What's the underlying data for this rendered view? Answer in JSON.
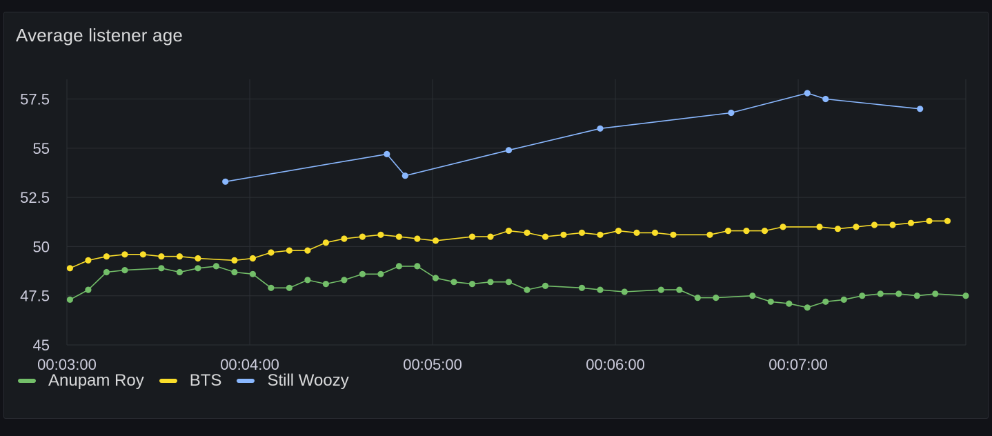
{
  "panel": {
    "title": "Average listener age"
  },
  "chart_data": {
    "type": "line",
    "title": "Average listener age",
    "xlabel": "",
    "ylabel": "",
    "xlim": [
      "00:03:00",
      "00:07:55"
    ],
    "ylim": [
      45,
      58.5
    ],
    "x_ticks": [
      "00:03:00",
      "00:04:00",
      "00:05:00",
      "00:06:00",
      "00:07:00"
    ],
    "y_ticks": [
      "45",
      "47.5",
      "50",
      "52.5",
      "55",
      "57.5"
    ],
    "grid": true,
    "legend": "bottom-left",
    "series": [
      {
        "name": "Anupam Roy",
        "color": "#73bf69",
        "points": [
          [
            "00:03:01",
            47.3
          ],
          [
            "00:03:07",
            47.8
          ],
          [
            "00:03:13",
            48.7
          ],
          [
            "00:03:19",
            48.8
          ],
          [
            "00:03:31",
            48.9
          ],
          [
            "00:03:37",
            48.7
          ],
          [
            "00:03:43",
            48.9
          ],
          [
            "00:03:49",
            49.0
          ],
          [
            "00:03:55",
            48.7
          ],
          [
            "00:04:01",
            48.6
          ],
          [
            "00:04:07",
            47.9
          ],
          [
            "00:04:13",
            47.9
          ],
          [
            "00:04:19",
            48.3
          ],
          [
            "00:04:25",
            48.1
          ],
          [
            "00:04:31",
            48.3
          ],
          [
            "00:04:37",
            48.6
          ],
          [
            "00:04:43",
            48.6
          ],
          [
            "00:04:49",
            49.0
          ],
          [
            "00:04:55",
            49.0
          ],
          [
            "00:05:01",
            48.4
          ],
          [
            "00:05:07",
            48.2
          ],
          [
            "00:05:13",
            48.1
          ],
          [
            "00:05:19",
            48.2
          ],
          [
            "00:05:25",
            48.2
          ],
          [
            "00:05:31",
            47.8
          ],
          [
            "00:05:37",
            48.0
          ],
          [
            "00:05:49",
            47.9
          ],
          [
            "00:05:55",
            47.8
          ],
          [
            "00:06:03",
            47.7
          ],
          [
            "00:06:15",
            47.8
          ],
          [
            "00:06:21",
            47.8
          ],
          [
            "00:06:27",
            47.4
          ],
          [
            "00:06:33",
            47.4
          ],
          [
            "00:06:45",
            47.5
          ],
          [
            "00:06:51",
            47.2
          ],
          [
            "00:06:57",
            47.1
          ],
          [
            "00:07:03",
            46.9
          ],
          [
            "00:07:09",
            47.2
          ],
          [
            "00:07:15",
            47.3
          ],
          [
            "00:07:21",
            47.5
          ],
          [
            "00:07:27",
            47.6
          ],
          [
            "00:07:33",
            47.6
          ],
          [
            "00:07:39",
            47.5
          ],
          [
            "00:07:45",
            47.6
          ],
          [
            "00:07:55",
            47.5
          ]
        ]
      },
      {
        "name": "BTS",
        "color": "#fade2a",
        "points": [
          [
            "00:03:01",
            48.9
          ],
          [
            "00:03:07",
            49.3
          ],
          [
            "00:03:13",
            49.5
          ],
          [
            "00:03:19",
            49.6
          ],
          [
            "00:03:25",
            49.6
          ],
          [
            "00:03:31",
            49.5
          ],
          [
            "00:03:37",
            49.5
          ],
          [
            "00:03:43",
            49.4
          ],
          [
            "00:03:55",
            49.3
          ],
          [
            "00:04:01",
            49.4
          ],
          [
            "00:04:07",
            49.7
          ],
          [
            "00:04:13",
            49.8
          ],
          [
            "00:04:19",
            49.8
          ],
          [
            "00:04:25",
            50.2
          ],
          [
            "00:04:31",
            50.4
          ],
          [
            "00:04:37",
            50.5
          ],
          [
            "00:04:43",
            50.6
          ],
          [
            "00:04:49",
            50.5
          ],
          [
            "00:04:55",
            50.4
          ],
          [
            "00:05:01",
            50.3
          ],
          [
            "00:05:13",
            50.5
          ],
          [
            "00:05:19",
            50.5
          ],
          [
            "00:05:25",
            50.8
          ],
          [
            "00:05:31",
            50.7
          ],
          [
            "00:05:37",
            50.5
          ],
          [
            "00:05:43",
            50.6
          ],
          [
            "00:05:49",
            50.7
          ],
          [
            "00:05:55",
            50.6
          ],
          [
            "00:06:01",
            50.8
          ],
          [
            "00:06:07",
            50.7
          ],
          [
            "00:06:13",
            50.7
          ],
          [
            "00:06:19",
            50.6
          ],
          [
            "00:06:31",
            50.6
          ],
          [
            "00:06:37",
            50.8
          ],
          [
            "00:06:43",
            50.8
          ],
          [
            "00:06:49",
            50.8
          ],
          [
            "00:06:55",
            51.0
          ],
          [
            "00:07:07",
            51.0
          ],
          [
            "00:07:13",
            50.9
          ],
          [
            "00:07:19",
            51.0
          ],
          [
            "00:07:25",
            51.1
          ],
          [
            "00:07:31",
            51.1
          ],
          [
            "00:07:37",
            51.2
          ],
          [
            "00:07:43",
            51.3
          ],
          [
            "00:07:49",
            51.3
          ]
        ]
      },
      {
        "name": "Still Woozy",
        "color": "#8ab8ff",
        "points": [
          [
            "00:03:52",
            53.3
          ],
          [
            "00:04:45",
            54.7
          ],
          [
            "00:04:51",
            53.6
          ],
          [
            "00:05:25",
            54.9
          ],
          [
            "00:05:55",
            56.0
          ],
          [
            "00:06:38",
            56.8
          ],
          [
            "00:07:03",
            57.8
          ],
          [
            "00:07:09",
            57.5
          ],
          [
            "00:07:40",
            57.0
          ]
        ]
      }
    ]
  }
}
